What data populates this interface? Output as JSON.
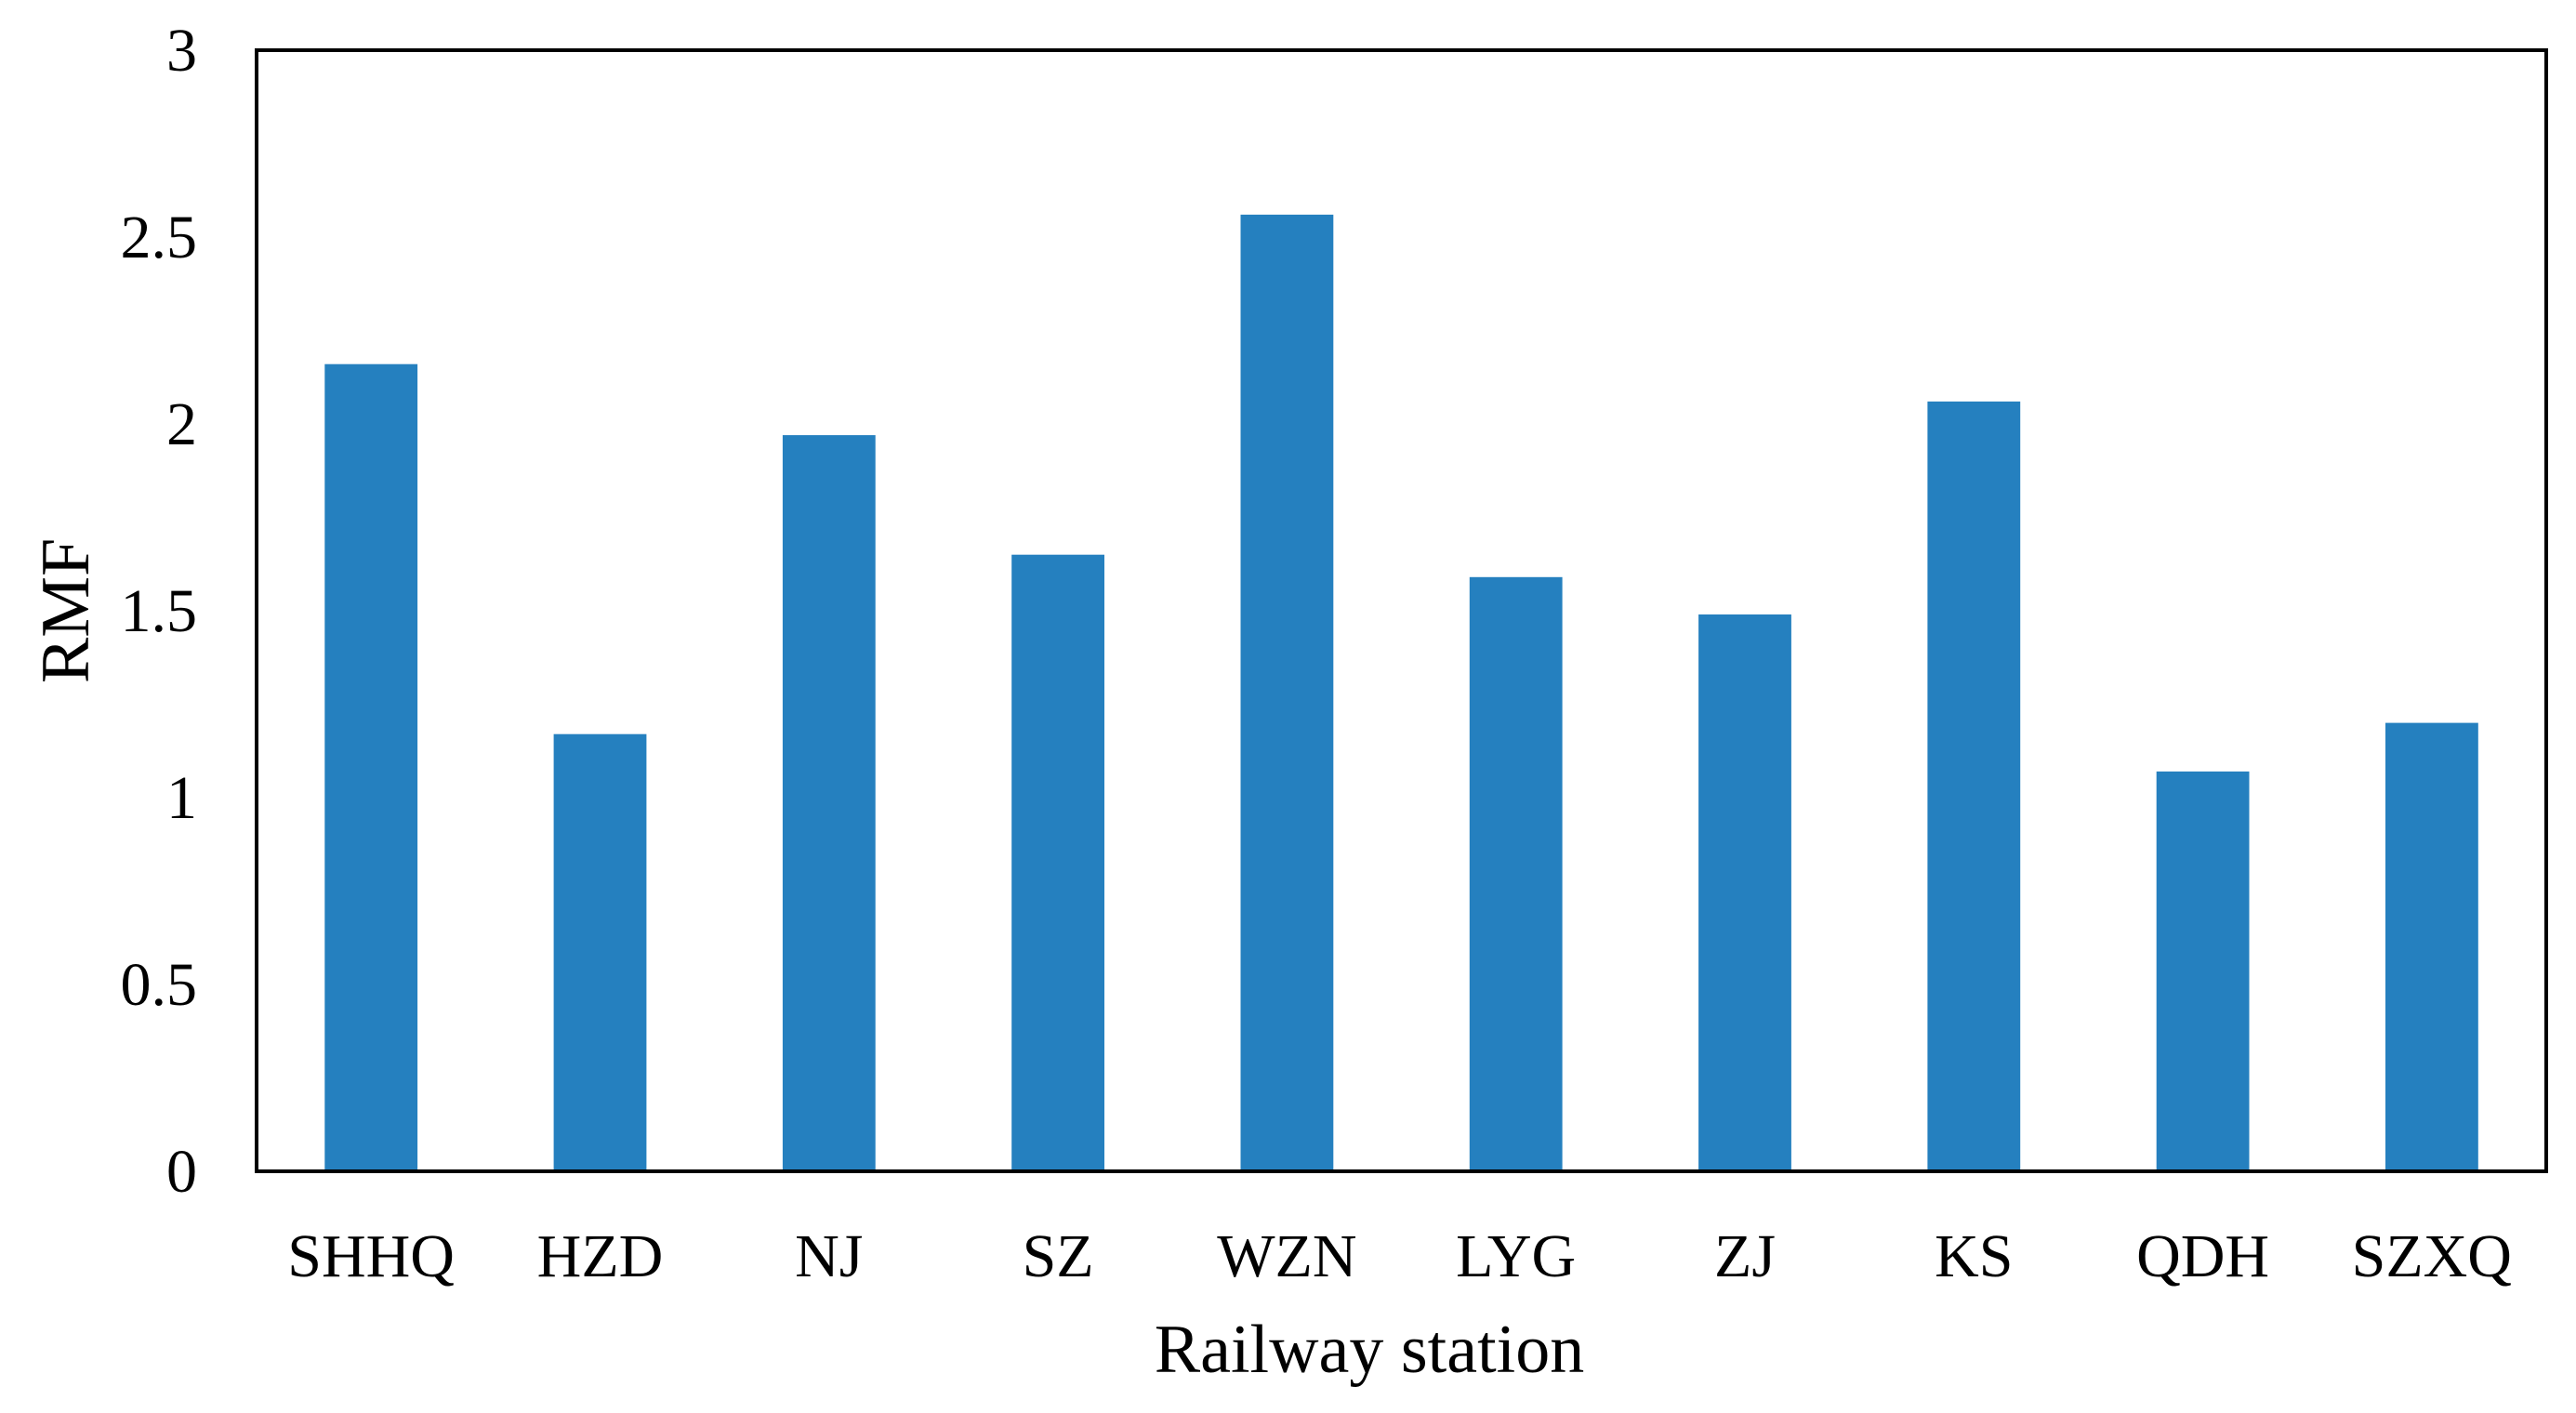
{
  "chart_data": {
    "type": "bar",
    "title": "",
    "xlabel": "Railway station",
    "ylabel": "RMF",
    "categories": [
      "SHHQ",
      "HZD",
      "NJ",
      "SZ",
      "WZN",
      "LYG",
      "ZJ",
      "KS",
      "QDH",
      "SZXQ"
    ],
    "series": [
      {
        "values": [
          2.16,
          1.17,
          1.97,
          1.65,
          2.56,
          1.59,
          1.49,
          2.06,
          1.07,
          1.2
        ],
        "color": "#2580bf"
      }
    ],
    "ylim": [
      0,
      3
    ],
    "yticks": [
      0,
      0.5,
      1,
      1.5,
      2,
      2.5,
      3
    ],
    "ytick_labels": [
      "0",
      "0.5",
      "1",
      "1.5",
      "2",
      "2.5",
      "3"
    ],
    "grid": false,
    "legend": "none",
    "frame": "box"
  }
}
